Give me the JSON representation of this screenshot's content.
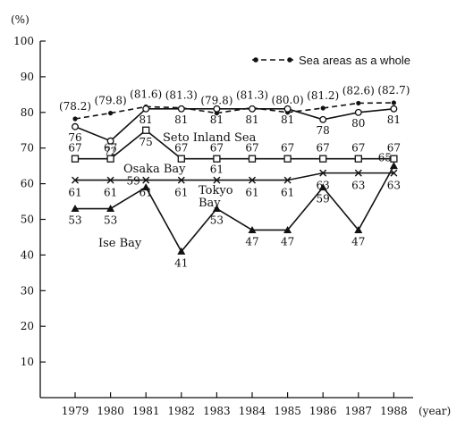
{
  "chart_data": {
    "type": "line",
    "y_unit": "(%)",
    "x_unit": "(year)",
    "ylim": [
      0,
      100
    ],
    "y_ticks": [
      "10",
      "20",
      "30",
      "40",
      "50",
      "60",
      "70",
      "80",
      "90",
      "100"
    ],
    "grid": false,
    "legend_position": "top-right",
    "categories": [
      "1979",
      "1980",
      "1981",
      "1982",
      "1983",
      "1984",
      "1985",
      "1986",
      "1987",
      "1988"
    ],
    "series": [
      {
        "name": "Sea areas as a whole",
        "style": "dashed-line-dot",
        "values": [
          78.2,
          79.8,
          81.6,
          81.3,
          79.8,
          81.3,
          80.0,
          81.2,
          82.6,
          82.7
        ],
        "labels": [
          "(78.2)",
          "(79.8)",
          "(81.6)",
          "(81.3)",
          "(79.8)",
          "(81.3)",
          "(80.0)",
          "(81.2)",
          "(82.6)",
          "(82.7)"
        ]
      },
      {
        "name": "Seto Inland Sea",
        "marker": "open-circle",
        "values": [
          76,
          72,
          81,
          81,
          81,
          81,
          81,
          78,
          80,
          81
        ],
        "labels": [
          "76",
          "72",
          "81",
          "81",
          "81",
          "81",
          "81",
          "78",
          "80",
          "81"
        ]
      },
      {
        "name": "Osaka Bay",
        "marker": "open-square",
        "values": [
          67,
          67,
          75,
          67,
          67,
          67,
          67,
          67,
          67,
          67
        ],
        "labels": [
          "67",
          "67",
          "75",
          "67",
          "67",
          "67",
          "67",
          "67",
          "67",
          "67"
        ]
      },
      {
        "name": "Tokyo Bay",
        "marker": "cross",
        "values": [
          61,
          61,
          61,
          61,
          61,
          61,
          61,
          63,
          63,
          63
        ],
        "labels": [
          "61",
          "61",
          "61",
          "61",
          "61",
          "61",
          "61",
          "63",
          "63",
          "63"
        ]
      },
      {
        "name": "Ise Bay",
        "marker": "filled-triangle",
        "values": [
          53,
          53,
          59,
          41,
          53,
          47,
          47,
          59,
          47,
          65
        ],
        "labels": [
          "53",
          "53",
          "59",
          "41",
          "53",
          "47",
          "47",
          "59",
          "47",
          "65"
        ]
      }
    ]
  }
}
